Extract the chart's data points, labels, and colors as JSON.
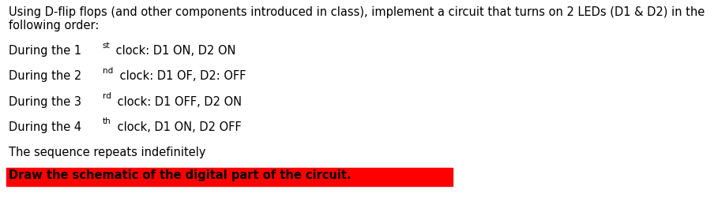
{
  "background_color": "#ffffff",
  "line1": "Using D-flip flops (and other components introduced in class), implement a circuit that turns on 2 LEDs (D1 & D2) in the",
  "line2": "following order:",
  "items": [
    {
      "prefix": "During the 1",
      "superscript": "st",
      "suffix": " clock: D1 ON, D2 ON"
    },
    {
      "prefix": "During the 2",
      "superscript": "nd",
      "suffix": " clock: D1 OF, D2: OFF"
    },
    {
      "prefix": "During the 3",
      "superscript": "rd",
      "suffix": " clock: D1 OFF, D2 ON"
    },
    {
      "prefix": "During the 4",
      "superscript": "th",
      "suffix": " clock, D1 ON, D2 OFF"
    }
  ],
  "line_seq": "The sequence repeats indefinitely",
  "highlight_text": "Draw the schematic of the digital part of the circuit.",
  "highlight_bg": "#ff0000",
  "highlight_text_color": "#000000",
  "font_size_main": 10.5,
  "font_size_sup": 7.5
}
